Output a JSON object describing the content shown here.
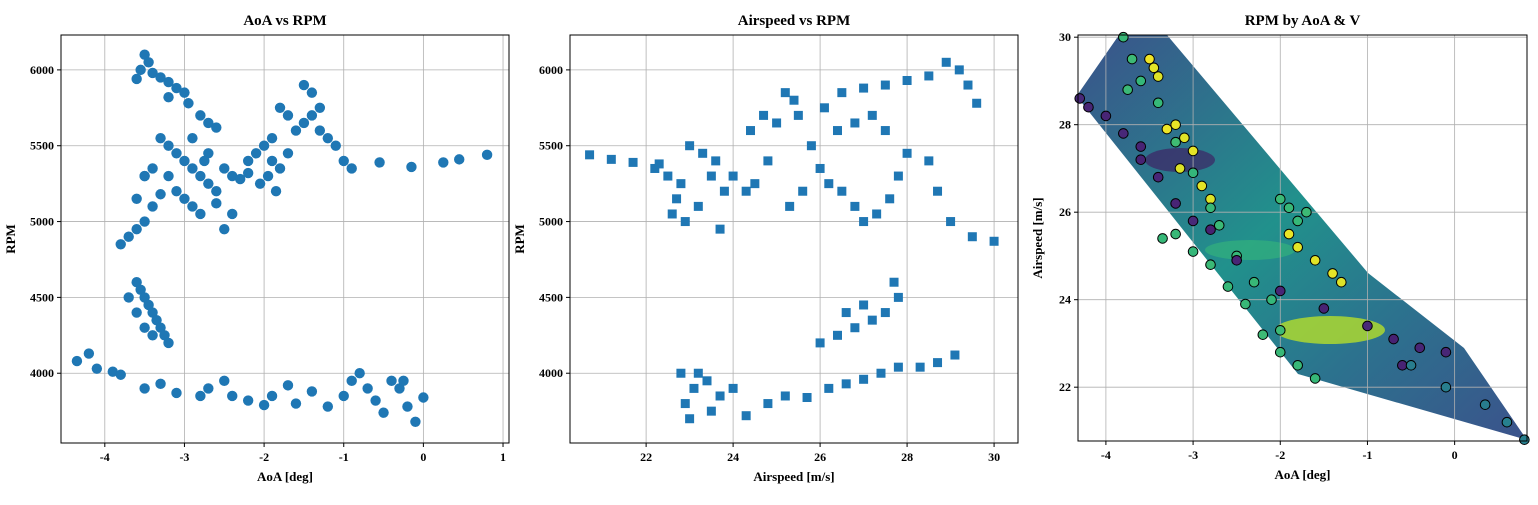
{
  "chart_data": [
    {
      "type": "scatter",
      "title": "AoA vs RPM",
      "xlabel": "AoA [deg]",
      "ylabel": "RPM",
      "marker": "o",
      "color": "#1f77b4",
      "grid": true,
      "xlim": [
        -4.55,
        1.075
      ],
      "ylim": [
        3540,
        6230
      ],
      "xticks": [
        -4,
        -3,
        -2,
        -1,
        0,
        1
      ],
      "yticks": [
        4000,
        4500,
        5000,
        5500,
        6000
      ],
      "x": [
        -3.5,
        -3.45,
        -3.55,
        -3.4,
        -3.6,
        -3.3,
        -3.2,
        -3.1,
        -3.0,
        -3.2,
        -2.95,
        -2.8,
        -2.7,
        -2.6,
        -3.3,
        -3.2,
        -3.1,
        -3.0,
        -2.9,
        -2.8,
        -2.7,
        -2.6,
        -2.5,
        -2.4,
        -2.3,
        -2.2,
        -3.2,
        -3.1,
        -3.0,
        -2.9,
        -2.8,
        -2.6,
        -2.5,
        -2.4,
        -3.4,
        -3.5,
        -3.3,
        -2.7,
        -2.9,
        -2.75,
        -2.1,
        -2.0,
        -1.9,
        -1.8,
        -1.95,
        -2.05,
        -1.85,
        -1.9,
        -2.2,
        -1.7,
        -1.6,
        -1.5,
        -1.4,
        -1.3,
        -1.4,
        -1.5,
        -1.3,
        -1.2,
        -1.1,
        -1.7,
        -1.8,
        -1.0,
        -0.9,
        -0.55,
        -0.15,
        0.25,
        0.45,
        0.8,
        -3.8,
        -3.7,
        -3.6,
        -3.5,
        -3.4,
        -3.6,
        -3.5,
        -3.6,
        -3.55,
        -3.5,
        -3.45,
        -3.4,
        -3.35,
        -3.3,
        -3.25,
        -3.2,
        -3.6,
        -3.7,
        -3.5,
        -3.4,
        -4.35,
        -4.2,
        -4.1,
        -3.9,
        -3.8,
        -3.5,
        -3.3,
        -3.1,
        -2.8,
        -2.7,
        -2.5,
        -2.4,
        -2.2,
        -2.0,
        -1.9,
        -1.7,
        -1.6,
        -1.4,
        -1.2,
        -1.0,
        -0.9,
        -0.8,
        -0.7,
        -0.6,
        -0.5,
        -0.4,
        -0.3,
        -0.2,
        -0.1,
        0.0,
        -0.25
      ],
      "y": [
        6100,
        6050,
        6000,
        5980,
        5940,
        5950,
        5920,
        5880,
        5850,
        5820,
        5780,
        5700,
        5650,
        5620,
        5550,
        5500,
        5450,
        5400,
        5350,
        5300,
        5250,
        5200,
        5350,
        5300,
        5280,
        5320,
        5300,
        5200,
        5150,
        5100,
        5050,
        5120,
        4950,
        5050,
        5350,
        5300,
        5180,
        5450,
        5550,
        5400,
        5450,
        5500,
        5400,
        5350,
        5300,
        5250,
        5200,
        5550,
        5400,
        5450,
        5600,
        5650,
        5700,
        5750,
        5850,
        5900,
        5600,
        5550,
        5500,
        5700,
        5750,
        5400,
        5350,
        5390,
        5360,
        5390,
        5410,
        5440,
        4850,
        4900,
        4950,
        5000,
        5100,
        5150,
        5300,
        4600,
        4550,
        4500,
        4450,
        4400,
        4350,
        4300,
        4250,
        4200,
        4400,
        4500,
        4300,
        4250,
        4080,
        4130,
        4030,
        4010,
        3990,
        3900,
        3930,
        3870,
        3850,
        3900,
        3950,
        3850,
        3820,
        3790,
        3850,
        3920,
        3800,
        3880,
        3780,
        3850,
        3950,
        4000,
        3900,
        3820,
        3740,
        3950,
        3900,
        3780,
        3680,
        3840,
        3950
      ]
    },
    {
      "type": "scatter",
      "title": "Airspeed vs RPM",
      "xlabel": "Airspeed [m/s]",
      "ylabel": "RPM",
      "marker": "s",
      "color": "#1f77b4",
      "grid": true,
      "xlim": [
        20.25,
        30.55
      ],
      "ylim": [
        3540,
        6230
      ],
      "xticks": [
        22,
        24,
        26,
        28,
        30
      ],
      "yticks": [
        4000,
        4500,
        5000,
        5500,
        6000
      ],
      "x": [
        20.7,
        21.2,
        21.7,
        22.2,
        22.5,
        22.8,
        22.7,
        22.6,
        22.9,
        23.2,
        23.5,
        23.8,
        23.7,
        24.0,
        24.3,
        24.5,
        24.8,
        25.0,
        25.2,
        25.4,
        25.5,
        25.8,
        26.0,
        26.2,
        26.5,
        26.8,
        27.0,
        27.3,
        27.6,
        27.8,
        28.0,
        27.5,
        27.2,
        26.8,
        26.4,
        26.1,
        26.5,
        27.0,
        27.5,
        28.0,
        28.5,
        28.9,
        29.2,
        29.4,
        29.6,
        28.5,
        28.7,
        29.0,
        29.5,
        30.0,
        23.0,
        23.3,
        23.6,
        22.3,
        25.3,
        25.6,
        24.4,
        24.7,
        26.0,
        26.4,
        26.8,
        27.2,
        27.5,
        27.8,
        27.7,
        26.6,
        27.0,
        23.0,
        22.9,
        23.1,
        23.4,
        23.7,
        24.0,
        23.5,
        24.3,
        24.8,
        25.2,
        25.7,
        26.2,
        26.6,
        27.0,
        27.4,
        27.8,
        28.3,
        28.7,
        29.1,
        22.8,
        23.2
      ],
      "y": [
        5440,
        5410,
        5390,
        5350,
        5300,
        5250,
        5150,
        5050,
        5000,
        5100,
        5300,
        5200,
        4950,
        5300,
        5200,
        5250,
        5400,
        5650,
        5850,
        5800,
        5700,
        5500,
        5350,
        5250,
        5200,
        5100,
        5000,
        5050,
        5150,
        5300,
        5450,
        5600,
        5700,
        5650,
        5600,
        5750,
        5850,
        5880,
        5900,
        5930,
        5960,
        6050,
        6000,
        5900,
        5780,
        5400,
        5200,
        5000,
        4900,
        4870,
        5500,
        5450,
        5400,
        5380,
        5100,
        5200,
        5600,
        5700,
        4200,
        4250,
        4300,
        4350,
        4400,
        4500,
        4600,
        4400,
        4450,
        3700,
        3800,
        3900,
        3950,
        3850,
        3900,
        3750,
        3720,
        3800,
        3850,
        3840,
        3900,
        3930,
        3960,
        4000,
        4040,
        4040,
        4070,
        4120,
        4000,
        4000
      ]
    },
    {
      "type": "scatter",
      "title": "RPM by AoA & V",
      "xlabel": "AoA [deg]",
      "ylabel": "Airspeed [m/s]",
      "marker": "o",
      "colormap": "viridis",
      "clim": [
        3650,
        6100
      ],
      "grid": true,
      "xlim": [
        -4.32,
        0.83
      ],
      "ylim": [
        20.77,
        30.05
      ],
      "xticks": [
        -4,
        -3,
        -2,
        -1,
        0
      ],
      "yticks": [
        22,
        24,
        26,
        28,
        30
      ],
      "x": [
        -3.5,
        -3.45,
        -3.4,
        -3.2,
        -3.1,
        -3.0,
        -3.15,
        -2.9,
        -2.8,
        -1.9,
        -1.8,
        -1.6,
        -1.4,
        -1.3,
        -3.3,
        -3.8,
        -3.7,
        -3.6,
        -3.75,
        -3.4,
        -3.2,
        -3.0,
        -2.8,
        -2.7,
        -2.5,
        -2.3,
        -2.1,
        -2.0,
        -1.8,
        -1.6,
        -2.0,
        -1.9,
        -1.8,
        -1.7,
        -3.2,
        -3.0,
        -2.8,
        -2.6,
        -2.4,
        -2.2,
        -2.0,
        -3.35,
        -4.0,
        -3.8,
        -3.6,
        -3.4,
        -3.6,
        -3.2,
        -3.0,
        -2.8,
        -2.5,
        -2.0,
        -1.5,
        -1.0,
        -0.7,
        -0.4,
        -0.1,
        -0.6,
        -4.2,
        -4.3,
        -0.1,
        0.35,
        0.6,
        0.8,
        -0.5
      ],
      "y": [
        29.5,
        29.3,
        29.1,
        28.0,
        27.7,
        27.4,
        27.0,
        26.6,
        26.3,
        25.5,
        25.2,
        24.9,
        24.6,
        24.4,
        27.9,
        30.0,
        29.5,
        29.0,
        28.8,
        28.5,
        27.6,
        26.9,
        26.1,
        25.7,
        25.0,
        24.4,
        24.0,
        23.3,
        22.5,
        22.2,
        26.3,
        26.1,
        25.8,
        26.0,
        25.5,
        25.1,
        24.8,
        24.3,
        23.9,
        23.2,
        22.8,
        25.4,
        28.2,
        27.8,
        27.2,
        26.8,
        27.5,
        26.2,
        25.8,
        25.6,
        24.9,
        24.2,
        23.8,
        23.4,
        23.1,
        22.9,
        22.8,
        22.5,
        28.4,
        28.6,
        22.0,
        21.6,
        21.2,
        20.8,
        22.5
      ],
      "c": [
        6050,
        6000,
        5980,
        6020,
        5990,
        6010,
        5970,
        6000,
        5980,
        6030,
        6000,
        5990,
        6010,
        5980,
        6040,
        5300,
        5320,
        5280,
        5310,
        5290,
        5330,
        5270,
        5300,
        5310,
        5290,
        5300,
        5280,
        5320,
        5300,
        5290,
        5310,
        5300,
        5290,
        5320,
        5300,
        5280,
        5310,
        5290,
        5300,
        5320,
        5300,
        5290,
        3900,
        3920,
        3880,
        3910,
        3890,
        3900,
        3930,
        3870,
        3900,
        3910,
        3890,
        3920,
        3880,
        3900,
        3910,
        3890,
        3900,
        3920,
        4700,
        4680,
        4720,
        4710,
        4690
      ]
    }
  ]
}
